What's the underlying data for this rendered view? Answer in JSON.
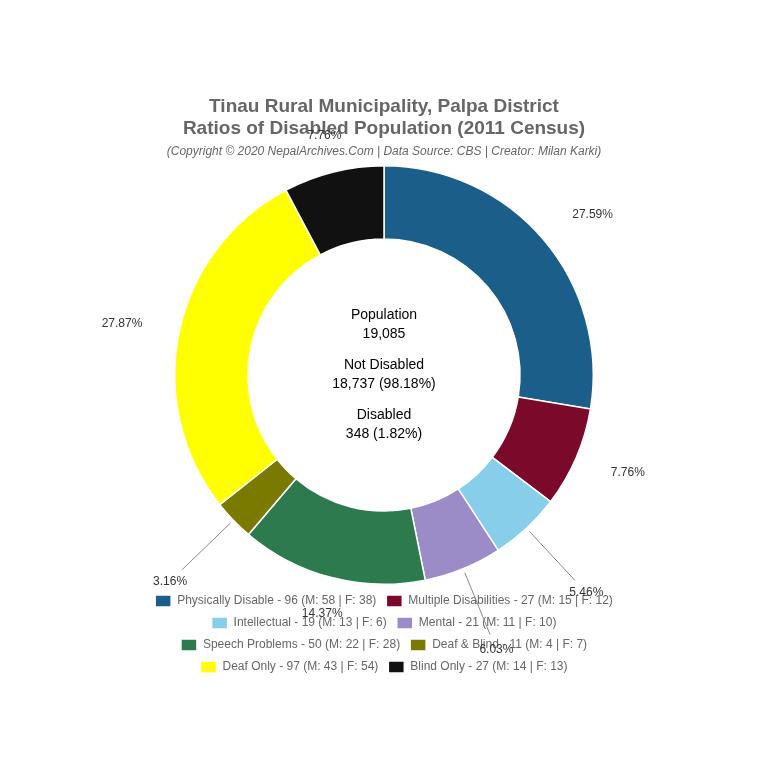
{
  "chart_data": {
    "type": "doughnut",
    "title": [
      "Tinau Rural Municipality, Palpa District",
      "Ratios of Disabled Population (2011 Census)"
    ],
    "subtitle": "(Copyright © 2020 NepalArchives.Com | Data Source: CBS | Creator: Milan Karki)",
    "categories": [
      "Physically Disable - 96 (M: 58 | F: 38)",
      "Multiple Disabilities - 27 (M: 15 | F: 12)",
      "Intellectual - 19 (M: 13 | F: 6)",
      "Mental - 21 (M: 11 | F: 10)",
      "Speech Problems - 50 (M: 22 | F: 28)",
      "Deaf & Blind - 11 (M: 4 | F: 7)",
      "Deaf Only - 97 (M: 43 | F: 54)",
      "Blind Only - 27 (M: 14 | F: 13)"
    ],
    "values": [
      27.59,
      7.76,
      5.46,
      6.03,
      14.37,
      3.16,
      27.87,
      7.76
    ],
    "value_labels": [
      "27.59%",
      "7.76%",
      "5.46%",
      "6.03%",
      "14.37%",
      "3.16%",
      "27.87%",
      "7.76%"
    ],
    "colors": [
      "#1b5e8a",
      "#7b0a2a",
      "#87ceeb",
      "#9b8cc8",
      "#2d7a4f",
      "#7a7a00",
      "#ffff00",
      "#111111"
    ],
    "data_labels": true,
    "legend": "bottom",
    "annotations": [
      "Population",
      "19,085",
      "Not Disabled",
      "18,737 (98.18%)",
      "Disabled",
      "348 (1.82%)"
    ]
  }
}
